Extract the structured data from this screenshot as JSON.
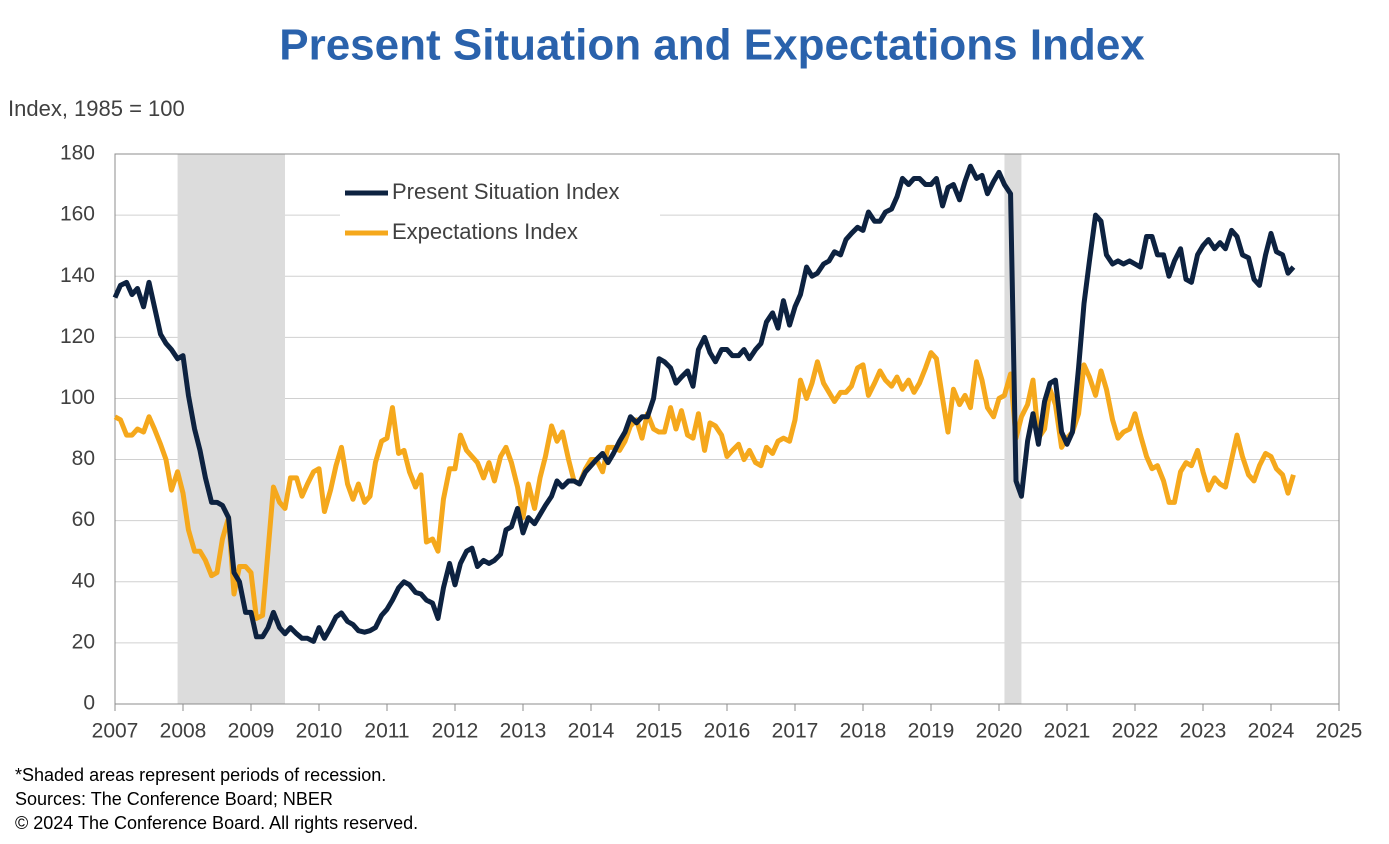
{
  "chart_data": {
    "type": "line",
    "title": "Present Situation and Expectations Index",
    "y_label": "Index, 1985 = 100",
    "footnotes": [
      "*Shaded areas represent periods of recession.",
      "Sources: The  Conference Board;  NBER",
      "© 2024 The Conference Board. All rights reserved."
    ],
    "xlim": [
      2007,
      2025
    ],
    "xticks": [
      2007,
      2008,
      2009,
      2010,
      2011,
      2012,
      2013,
      2014,
      2015,
      2016,
      2017,
      2018,
      2019,
      2020,
      2021,
      2022,
      2023,
      2024,
      2025
    ],
    "ylim": [
      0,
      180
    ],
    "yticks": [
      0,
      20,
      40,
      60,
      80,
      100,
      120,
      140,
      160,
      180
    ],
    "grid": true,
    "legend": "upper-left",
    "recession_color": "#dcdcdc",
    "recessions": [
      [
        2007.92,
        2009.5
      ],
      [
        2020.08,
        2020.33
      ]
    ],
    "x": [
      2007,
      2007.08,
      2007.17,
      2007.25,
      2007.33,
      2007.42,
      2007.5,
      2007.58,
      2007.67,
      2007.75,
      2007.83,
      2007.92,
      2008,
      2008.08,
      2008.17,
      2008.25,
      2008.33,
      2008.42,
      2008.5,
      2008.58,
      2008.67,
      2008.75,
      2008.83,
      2008.92,
      2009,
      2009.08,
      2009.17,
      2009.25,
      2009.33,
      2009.42,
      2009.5,
      2009.58,
      2009.67,
      2009.75,
      2009.83,
      2009.92,
      2010,
      2010.08,
      2010.17,
      2010.25,
      2010.33,
      2010.42,
      2010.5,
      2010.58,
      2010.67,
      2010.75,
      2010.83,
      2010.92,
      2011,
      2011.08,
      2011.17,
      2011.25,
      2011.33,
      2011.42,
      2011.5,
      2011.58,
      2011.67,
      2011.75,
      2011.83,
      2011.92,
      2012,
      2012.08,
      2012.17,
      2012.25,
      2012.33,
      2012.42,
      2012.5,
      2012.58,
      2012.67,
      2012.75,
      2012.83,
      2012.92,
      2013,
      2013.08,
      2013.17,
      2013.25,
      2013.33,
      2013.42,
      2013.5,
      2013.58,
      2013.67,
      2013.75,
      2013.83,
      2013.92,
      2014,
      2014.08,
      2014.17,
      2014.25,
      2014.33,
      2014.42,
      2014.5,
      2014.58,
      2014.67,
      2014.75,
      2014.83,
      2014.92,
      2015,
      2015.08,
      2015.17,
      2015.25,
      2015.33,
      2015.42,
      2015.5,
      2015.58,
      2015.67,
      2015.75,
      2015.83,
      2015.92,
      2016,
      2016.08,
      2016.17,
      2016.25,
      2016.33,
      2016.42,
      2016.5,
      2016.58,
      2016.67,
      2016.75,
      2016.83,
      2016.92,
      2017,
      2017.08,
      2017.17,
      2017.25,
      2017.33,
      2017.42,
      2017.5,
      2017.58,
      2017.67,
      2017.75,
      2017.83,
      2017.92,
      2018,
      2018.08,
      2018.17,
      2018.25,
      2018.33,
      2018.42,
      2018.5,
      2018.58,
      2018.67,
      2018.75,
      2018.83,
      2018.92,
      2019,
      2019.08,
      2019.17,
      2019.25,
      2019.33,
      2019.42,
      2019.5,
      2019.58,
      2019.67,
      2019.75,
      2019.83,
      2019.92,
      2020,
      2020.08,
      2020.17,
      2020.25,
      2020.33,
      2020.42,
      2020.5,
      2020.58,
      2020.67,
      2020.75,
      2020.83,
      2020.92,
      2021,
      2021.08,
      2021.17,
      2021.25,
      2021.33,
      2021.42,
      2021.5,
      2021.58,
      2021.67,
      2021.75,
      2021.83,
      2021.92,
      2022,
      2022.08,
      2022.17,
      2022.25,
      2022.33,
      2022.42,
      2022.5,
      2022.58,
      2022.67,
      2022.75,
      2022.83,
      2022.92,
      2023,
      2023.08,
      2023.17,
      2023.25,
      2023.33,
      2023.42,
      2023.5,
      2023.58,
      2023.67,
      2023.75,
      2023.83,
      2023.92,
      2024,
      2024.08,
      2024.17,
      2024.25,
      2024.33
    ],
    "series": [
      {
        "name": "Present Situation Index",
        "color": "#0d2240",
        "values": [
          133,
          137,
          138,
          134,
          136,
          130,
          138,
          130,
          121,
          118,
          116,
          113,
          114,
          101,
          90,
          83,
          74,
          66,
          66,
          65,
          61,
          43,
          40,
          30,
          30,
          22,
          22,
          25,
          30,
          25,
          23,
          25,
          23,
          21.5,
          21.5,
          20.5,
          25,
          21.5,
          25,
          28.5,
          29.8,
          27,
          26,
          24,
          23.5,
          24,
          25,
          29,
          31,
          34,
          38,
          40,
          39,
          36.5,
          36,
          34,
          33,
          28,
          38,
          46,
          39,
          46,
          50,
          51,
          45,
          47,
          46,
          47,
          49,
          57,
          58,
          64,
          56,
          61,
          59,
          62,
          65,
          68,
          73,
          71,
          73,
          73,
          72,
          76,
          78,
          80,
          82,
          79,
          82,
          86,
          89,
          94,
          92,
          94,
          94,
          100,
          113,
          112,
          110,
          105,
          107,
          109,
          104,
          116,
          120,
          115,
          112,
          116,
          116,
          114,
          114,
          116,
          113,
          116,
          118,
          125,
          128,
          123,
          132,
          124,
          130,
          134,
          143,
          140,
          141,
          144,
          145,
          148,
          147,
          152,
          154,
          156,
          155,
          161,
          158,
          158,
          161,
          162,
          166,
          172,
          170,
          172,
          172,
          170,
          170,
          172,
          163,
          169,
          170,
          165,
          171,
          176,
          172,
          173,
          167,
          171,
          174,
          170,
          167,
          73,
          68,
          86,
          95,
          85,
          99,
          105,
          106,
          89,
          85,
          89,
          110,
          131,
          145,
          160,
          158,
          147,
          144,
          145,
          144,
          145,
          144,
          143,
          153,
          153,
          147,
          147,
          140,
          145,
          149,
          139,
          138,
          147,
          150,
          152,
          149,
          151,
          149,
          155,
          153,
          147,
          146,
          139,
          137,
          147,
          154,
          148,
          147,
          141,
          143
        ]
      },
      {
        "name": "Expectations Index",
        "color": "#f5a81c",
        "values": [
          94,
          93,
          88,
          88,
          90,
          89,
          94,
          90,
          85,
          80,
          70,
          76,
          69,
          57,
          50,
          50,
          47,
          42,
          43,
          54,
          61,
          36,
          45,
          45,
          43,
          28,
          29,
          50,
          71,
          66,
          64,
          74,
          74,
          68,
          72,
          76,
          77,
          63,
          70,
          78,
          84,
          72,
          67,
          72,
          66,
          68,
          79,
          86,
          87,
          97,
          82,
          83,
          76,
          71,
          75,
          53,
          54,
          50,
          67,
          77,
          77,
          88,
          83,
          81,
          79,
          74,
          79,
          73,
          81,
          84,
          79,
          71,
          61,
          72,
          64,
          74,
          81,
          91,
          86,
          89,
          80,
          73,
          72,
          77,
          80,
          80,
          76,
          84,
          84,
          83,
          86,
          91,
          93,
          87,
          95,
          90,
          89,
          89,
          97,
          90,
          96,
          88,
          87,
          95,
          83,
          92,
          91,
          88,
          81,
          83,
          85,
          80,
          83,
          79,
          78,
          84,
          82,
          86,
          87,
          86,
          93,
          106,
          100,
          105,
          112,
          105,
          102,
          99,
          102,
          102,
          104,
          110,
          111,
          101,
          105,
          109,
          106,
          104,
          107,
          103,
          106,
          102,
          105,
          110,
          115,
          113,
          100,
          89,
          103,
          98,
          101,
          97,
          112,
          106,
          97,
          94,
          100,
          101,
          108,
          87,
          94,
          98,
          106,
          87,
          90,
          103,
          98,
          84,
          87,
          89,
          95,
          111,
          107,
          101,
          109,
          103,
          93,
          87,
          89,
          90,
          95,
          88,
          81,
          77,
          78,
          73,
          66,
          66,
          76,
          79,
          78,
          83,
          76,
          70,
          74,
          72,
          71,
          80,
          88,
          81,
          75,
          73,
          78,
          82,
          81,
          77,
          75,
          69,
          75
        ]
      }
    ]
  }
}
